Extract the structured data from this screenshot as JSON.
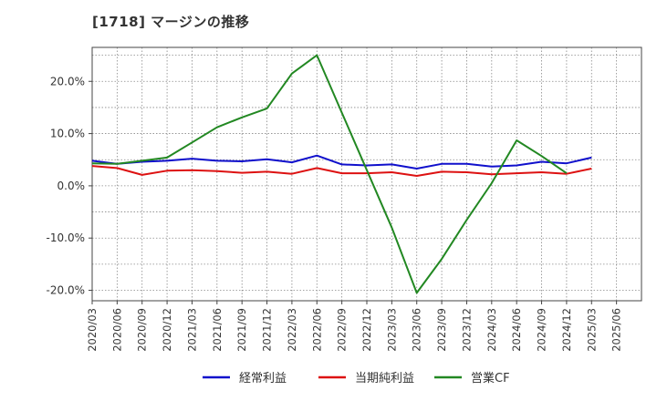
{
  "title": "[1718]  マージンの推移",
  "chart_data": {
    "type": "line",
    "title": "[1718]  マージンの推移",
    "xlabel": "",
    "ylabel": "",
    "ylim": [
      -22,
      26.5
    ],
    "y_ticks": [
      20,
      10,
      0,
      -10,
      -20
    ],
    "y_tick_labels": [
      "20.0%",
      "10.0%",
      "0.0%",
      "-10.0%",
      "-20.0%"
    ],
    "x_tick_labels": [
      "2020/03",
      "2020/06",
      "2020/09",
      "2020/12",
      "2021/03",
      "2021/06",
      "2021/09",
      "2021/12",
      "2022/03",
      "2022/06",
      "2022/09",
      "2022/12",
      "2023/03",
      "2023/06",
      "2023/09",
      "2023/12",
      "2024/03",
      "2024/06",
      "2024/09",
      "2024/12",
      "2025/03",
      "2025/06"
    ],
    "grid": true,
    "legend_position": "bottom",
    "series": [
      {
        "name": "経常利益",
        "color": "#1010cc",
        "values": [
          4.8,
          4.2,
          4.6,
          4.8,
          5.2,
          4.8,
          4.7,
          5.1,
          4.5,
          5.8,
          4.1,
          3.9,
          4.1,
          3.3,
          4.2,
          4.2,
          3.7,
          3.9,
          4.6,
          4.3,
          5.4,
          null
        ]
      },
      {
        "name": "当期純利益",
        "color": "#dd1111",
        "values": [
          3.8,
          3.4,
          2.1,
          2.9,
          3.0,
          2.8,
          2.5,
          2.7,
          2.3,
          3.4,
          2.4,
          2.4,
          2.6,
          1.9,
          2.7,
          2.6,
          2.2,
          2.4,
          2.6,
          2.3,
          3.3,
          null
        ]
      },
      {
        "name": "営業CF",
        "color": "#228822",
        "values": [
          4.3,
          4.2,
          4.8,
          5.4,
          8.3,
          11.2,
          13.1,
          14.8,
          21.5,
          25.0,
          14.0,
          3.0,
          -8.0,
          -20.5,
          -14.0,
          -6.5,
          0.5,
          8.7,
          5.7,
          2.4,
          null,
          null
        ]
      }
    ]
  }
}
